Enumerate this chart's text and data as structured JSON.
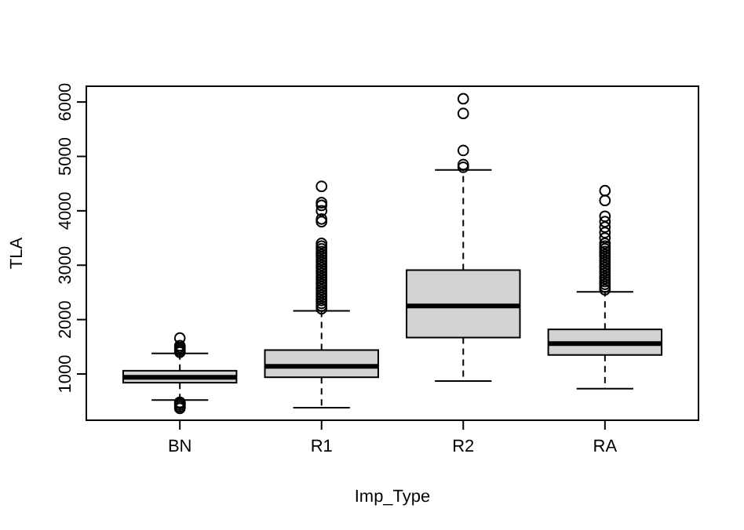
{
  "chart_data": {
    "type": "box",
    "xlabel": "Imp_Type",
    "ylabel": "TLA",
    "categories": [
      "BN",
      "R1",
      "R2",
      "RA"
    ],
    "ylim": [
      150,
      6290
    ],
    "yticks": [
      1000,
      2000,
      3000,
      4000,
      5000,
      6000
    ],
    "grid": false,
    "series": [
      {
        "color": "#d3d3d3",
        "boxes": [
          {
            "low": 520,
            "q1": 840,
            "median": 940,
            "q3": 1060,
            "high": 1380,
            "outliers": [
              370,
              400,
              430,
              460,
              480,
              1400,
              1430,
              1460,
              1490,
              1520,
              1660
            ]
          },
          {
            "low": 380,
            "q1": 940,
            "median": 1140,
            "q3": 1440,
            "high": 2160,
            "outliers": [
              2200,
              2250,
              2300,
              2350,
              2400,
              2450,
              2500,
              2550,
              2600,
              2650,
              2700,
              2750,
              2800,
              2850,
              2900,
              2950,
              3000,
              3050,
              3100,
              3150,
              3200,
              3250,
              3300,
              3350,
              3400,
              3800,
              3850,
              4000,
              4100,
              4150,
              4450
            ]
          },
          {
            "low": 870,
            "q1": 1670,
            "median": 2250,
            "q3": 2910,
            "high": 4750,
            "outliers": [
              4800,
              4850,
              5110,
              5790,
              6060
            ]
          },
          {
            "low": 730,
            "q1": 1350,
            "median": 1560,
            "q3": 1820,
            "high": 2510,
            "outliers": [
              2550,
              2600,
              2650,
              2700,
              2750,
              2800,
              2850,
              2900,
              2950,
              3000,
              3050,
              3100,
              3150,
              3200,
              3250,
              3300,
              3350,
              3400,
              3500,
              3600,
              3700,
              3800,
              3900,
              4190,
              4370
            ]
          }
        ]
      }
    ]
  }
}
